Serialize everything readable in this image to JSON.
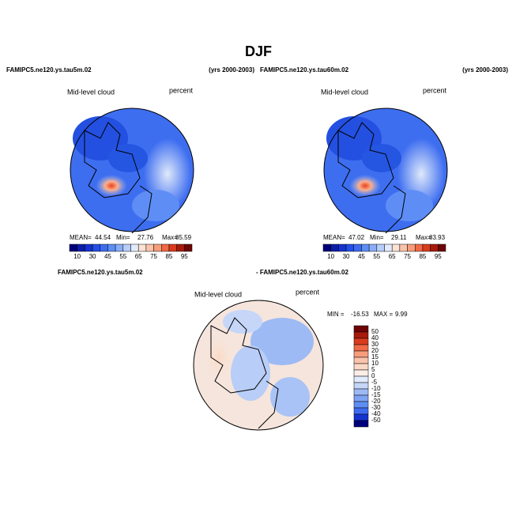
{
  "title": "DJF",
  "panels": [
    {
      "case": "FAMIPC5.ne120.ys.tau5m.02",
      "years": "(yrs 2000-2003)",
      "variable": "Mid-level cloud",
      "units": "percent",
      "stats": {
        "mean_label": "MEAN=",
        "mean": 44.54,
        "min_label": "Min=",
        "min": 27.76,
        "max_label": "Max=",
        "max": 85.59
      },
      "colorbar": [
        10,
        30,
        45,
        55,
        65,
        75,
        85,
        95
      ]
    },
    {
      "case": "FAMIPC5.ne120.ys.tau60m.02",
      "years": "(yrs 2000-2003)",
      "variable": "Mid-level cloud",
      "units": "percent",
      "stats": {
        "mean_label": "MEAN=",
        "mean": 47.02,
        "min_label": "Min=",
        "min": 29.11,
        "max_label": "Max=",
        "max": 83.93
      },
      "colorbar": [
        10,
        30,
        45,
        55,
        65,
        75,
        85,
        95
      ]
    }
  ],
  "difference": {
    "case_a": "FAMIPC5.ne120.ys.tau5m.02",
    "case_b": "- FAMIPC5.ne120.ys.tau60m.02",
    "variable": "Mid-level cloud",
    "units": "percent",
    "stats": {
      "min_label": "MIN =",
      "min": -16.53,
      "max_label": "MAX =",
      "max": 9.99
    },
    "colorbar": [
      50,
      40,
      30,
      20,
      15,
      10,
      5,
      0,
      -5,
      -10,
      -15,
      -20,
      -30,
      -40,
      -50
    ]
  }
}
